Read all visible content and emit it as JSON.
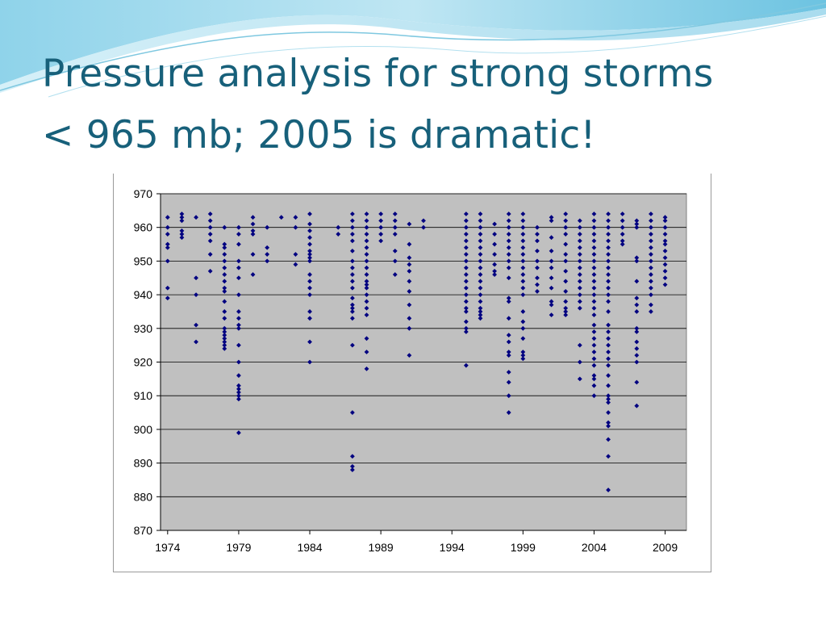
{
  "slide": {
    "title_line1": "Pressure analysis for strong storms",
    "title_line2": "< 965 mb; 2005 is dramatic!"
  },
  "colors": {
    "title": "#17607a",
    "plot_background": "#c0c0c0",
    "marker": "#000080",
    "gridline": "#000000"
  },
  "chart_data": {
    "type": "scatter",
    "title": "",
    "xlabel": "",
    "ylabel": "",
    "xlim": [
      1973.5,
      2010.5
    ],
    "ylim": [
      870,
      970
    ],
    "x_ticks": [
      1974,
      1979,
      1984,
      1989,
      1994,
      1999,
      2004,
      2009
    ],
    "y_ticks": [
      870,
      880,
      890,
      900,
      910,
      920,
      930,
      940,
      950,
      960,
      970
    ],
    "grid": "horizontal",
    "legend": "none",
    "marker": "diamond",
    "points_by_year": [
      {
        "year": 1974,
        "pressures": [
          963,
          960,
          958,
          955,
          954,
          950,
          942,
          939
        ]
      },
      {
        "year": 1975,
        "pressures": [
          964,
          963,
          962,
          959,
          958,
          957
        ]
      },
      {
        "year": 1976,
        "pressures": [
          963,
          945,
          940,
          931,
          926
        ]
      },
      {
        "year": 1977,
        "pressures": [
          964,
          962,
          960,
          958,
          956,
          952,
          947
        ]
      },
      {
        "year": 1978,
        "pressures": [
          960,
          955,
          954,
          952,
          950,
          948,
          946,
          944,
          942,
          941,
          938,
          935,
          933,
          930,
          929,
          928,
          927,
          926,
          925,
          924
        ]
      },
      {
        "year": 1979,
        "pressures": [
          960,
          958,
          955,
          950,
          948,
          945,
          940,
          935,
          933,
          931,
          930,
          925,
          920,
          916,
          913,
          912,
          911,
          910,
          909,
          899
        ]
      },
      {
        "year": 1980,
        "pressures": [
          963,
          961,
          959,
          958,
          952,
          946
        ]
      },
      {
        "year": 1981,
        "pressures": [
          960,
          954,
          952,
          950
        ]
      },
      {
        "year": 1982,
        "pressures": [
          963
        ]
      },
      {
        "year": 1983,
        "pressures": [
          963,
          960,
          952,
          949
        ]
      },
      {
        "year": 1984,
        "pressures": [
          964,
          961,
          959,
          957,
          955,
          953,
          952,
          951,
          950,
          946,
          944,
          942,
          940,
          935,
          933,
          926,
          920
        ]
      },
      {
        "year": 1986,
        "pressures": [
          960,
          958
        ]
      },
      {
        "year": 1987,
        "pressures": [
          964,
          962,
          960,
          958,
          956,
          953,
          950,
          948,
          946,
          944,
          942,
          939,
          937,
          936,
          935,
          933,
          925,
          905,
          892,
          889,
          888
        ]
      },
      {
        "year": 1988,
        "pressures": [
          964,
          962,
          960,
          958,
          956,
          954,
          952,
          950,
          948,
          946,
          944,
          943,
          942,
          940,
          938,
          936,
          934,
          927,
          923,
          918
        ]
      },
      {
        "year": 1989,
        "pressures": [
          964,
          962,
          960,
          958,
          956
        ]
      },
      {
        "year": 1990,
        "pressures": [
          964,
          962,
          960,
          958,
          953,
          950,
          946
        ]
      },
      {
        "year": 1991,
        "pressures": [
          961,
          955,
          951,
          949,
          947,
          944,
          941,
          937,
          933,
          930,
          922
        ]
      },
      {
        "year": 1992,
        "pressures": [
          962,
          960
        ]
      },
      {
        "year": 1995,
        "pressures": [
          964,
          962,
          960,
          958,
          956,
          954,
          952,
          950,
          948,
          946,
          944,
          942,
          940,
          938,
          936,
          935,
          932,
          930,
          929,
          919
        ]
      },
      {
        "year": 1996,
        "pressures": [
          964,
          962,
          960,
          958,
          956,
          954,
          952,
          950,
          948,
          946,
          944,
          942,
          940,
          938,
          936,
          935,
          934,
          933
        ]
      },
      {
        "year": 1997,
        "pressures": [
          961,
          958,
          955,
          952,
          949,
          947,
          946
        ]
      },
      {
        "year": 1998,
        "pressures": [
          964,
          962,
          960,
          958,
          956,
          954,
          952,
          950,
          948,
          945,
          939,
          938,
          933,
          928,
          926,
          923,
          922,
          917,
          914,
          910,
          905
        ]
      },
      {
        "year": 1999,
        "pressures": [
          964,
          962,
          960,
          958,
          956,
          954,
          952,
          950,
          948,
          946,
          944,
          942,
          940,
          935,
          932,
          930,
          927,
          923,
          922,
          921
        ]
      },
      {
        "year": 2000,
        "pressures": [
          960,
          958,
          956,
          953,
          950,
          948,
          945,
          943,
          941
        ]
      },
      {
        "year": 2001,
        "pressures": [
          963,
          962,
          957,
          953,
          950,
          948,
          945,
          942,
          938,
          937,
          934
        ]
      },
      {
        "year": 2002,
        "pressures": [
          964,
          962,
          960,
          958,
          955,
          952,
          950,
          947,
          944,
          941,
          938,
          936,
          935,
          934
        ]
      },
      {
        "year": 2003,
        "pressures": [
          962,
          960,
          958,
          956,
          954,
          952,
          950,
          948,
          946,
          944,
          942,
          940,
          938,
          936,
          925,
          920,
          915
        ]
      },
      {
        "year": 2004,
        "pressures": [
          964,
          962,
          960,
          958,
          956,
          954,
          952,
          950,
          948,
          946,
          944,
          942,
          940,
          938,
          936,
          934,
          931,
          929,
          927,
          925,
          923,
          921,
          919,
          916,
          915,
          913,
          910
        ]
      },
      {
        "year": 2005,
        "pressures": [
          964,
          962,
          960,
          958,
          956,
          954,
          952,
          950,
          948,
          946,
          944,
          942,
          940,
          938,
          935,
          931,
          929,
          927,
          925,
          923,
          921,
          919,
          916,
          913,
          910,
          909,
          908,
          905,
          902,
          901,
          897,
          892,
          882
        ]
      },
      {
        "year": 2006,
        "pressures": [
          964,
          962,
          960,
          958,
          956,
          955
        ]
      },
      {
        "year": 2007,
        "pressures": [
          962,
          961,
          960,
          951,
          950,
          944,
          939,
          937,
          935,
          930,
          929,
          926,
          924,
          922,
          920,
          914,
          907
        ]
      },
      {
        "year": 2008,
        "pressures": [
          964,
          962,
          960,
          958,
          956,
          954,
          952,
          950,
          948,
          946,
          944,
          942,
          940,
          937,
          935
        ]
      },
      {
        "year": 2009,
        "pressures": [
          963,
          962,
          960,
          958,
          956,
          955,
          953,
          951,
          949,
          947,
          945,
          943
        ]
      }
    ]
  }
}
